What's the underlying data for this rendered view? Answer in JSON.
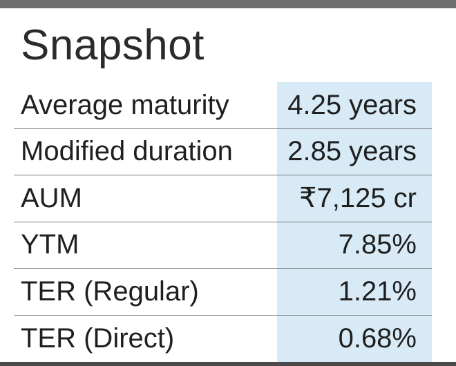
{
  "title": "Snapshot",
  "rows": [
    {
      "label": "Average maturity",
      "value": "4.25 years"
    },
    {
      "label": "Modified duration",
      "value": "2.85 years"
    },
    {
      "label": "AUM",
      "value": "₹7,125 cr"
    },
    {
      "label": "YTM",
      "value": "7.85%"
    },
    {
      "label": "TER (Regular)",
      "value": "1.21%"
    },
    {
      "label": "TER (Direct)",
      "value": "0.68%"
    }
  ],
  "colors": {
    "value_column_bg": "#d8eaf5",
    "top_bar": "#6f6f6f",
    "text": "#1f1f1f"
  }
}
